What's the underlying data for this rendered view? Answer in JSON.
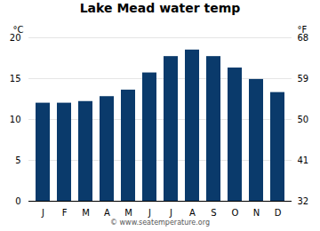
{
  "chart_data": {
    "type": "bar",
    "title": "Lake Mead water temp",
    "categories": [
      "J",
      "F",
      "M",
      "A",
      "M",
      "J",
      "J",
      "A",
      "S",
      "O",
      "N",
      "D"
    ],
    "values": [
      12.0,
      12.0,
      12.2,
      12.8,
      13.6,
      15.7,
      17.7,
      18.5,
      17.7,
      16.3,
      14.9,
      13.3
    ],
    "color": "#0a3a6b",
    "y_label": "°C",
    "y2_label": "°F",
    "ylim": [
      0,
      20
    ],
    "yticks": [
      0,
      5,
      10,
      15,
      20
    ],
    "y2lim": [
      32,
      68
    ],
    "y2ticks": [
      32,
      41,
      50,
      59,
      68
    ],
    "grid": true,
    "annotations": [
      "© www.seatemperature.org"
    ]
  }
}
